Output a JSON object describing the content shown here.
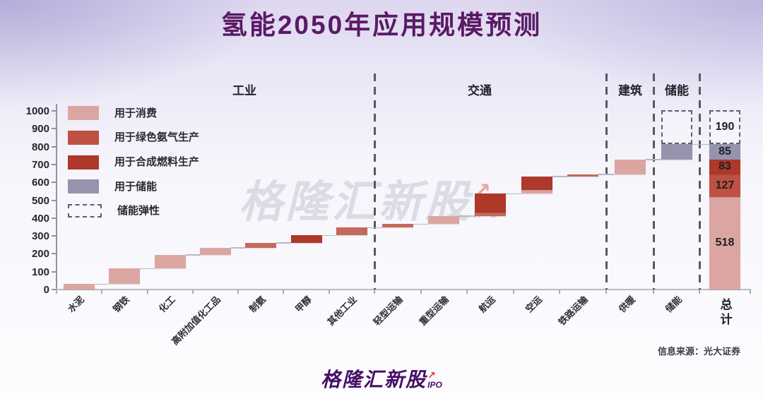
{
  "title": "氢能2050年应用规模预测",
  "source": "信息来源：光大证券",
  "watermark": {
    "brand": "格隆汇新股",
    "arrow": "↗",
    "sub": "IPO"
  },
  "footer": {
    "brand": "格隆汇新股",
    "arrow": "↗",
    "sub": "IPO"
  },
  "colors": {
    "consumption": "#dba6a1",
    "ammonia_light": "#c4695b",
    "ammonia": "#bf5044",
    "synfuel": "#ae382a",
    "storage": "#9693ac",
    "title_purple": "#5a1a66",
    "brand_purple": "#471069",
    "brand_red": "#df352d"
  },
  "chart_data": {
    "type": "waterfall",
    "ylim": [
      0,
      1000
    ],
    "yticks": [
      0,
      100,
      200,
      300,
      400,
      500,
      600,
      700,
      800,
      900,
      1000
    ],
    "grid": false,
    "sections": [
      {
        "label": "工业"
      },
      {
        "label": "交通"
      },
      {
        "label": "建筑"
      },
      {
        "label": "储能"
      }
    ],
    "legend": [
      {
        "label": "用于消费",
        "swatch": "consumption"
      },
      {
        "label": "用于绿色氨气生产",
        "swatch": "ammonia"
      },
      {
        "label": "用于合成燃料生产",
        "swatch": "synfuel"
      },
      {
        "label": "用于储能",
        "swatch": "storage"
      },
      {
        "label": "储能弹性",
        "swatch": "flex"
      }
    ],
    "bars": [
      {
        "category": "水泥",
        "section": "工业",
        "start": 0,
        "segments": [
          {
            "color": "consumption",
            "value": 30
          }
        ]
      },
      {
        "category": "钢铁",
        "section": "工业",
        "start": 30,
        "segments": [
          {
            "color": "consumption",
            "value": 88
          }
        ]
      },
      {
        "category": "化工",
        "section": "工业",
        "start": 118,
        "segments": [
          {
            "color": "consumption",
            "value": 77
          }
        ]
      },
      {
        "category": "高附加值化工品",
        "section": "工业",
        "start": 195,
        "segments": [
          {
            "color": "consumption",
            "value": 40
          }
        ]
      },
      {
        "category": "制氨",
        "section": "工业",
        "start": 235,
        "segments": [
          {
            "color": "ammonia_light",
            "value": 26
          }
        ]
      },
      {
        "category": "甲醇",
        "section": "工业",
        "start": 261,
        "segments": [
          {
            "color": "synfuel",
            "value": 42
          }
        ]
      },
      {
        "category": "其他工业",
        "section": "工业",
        "start": 303,
        "segments": [
          {
            "color": "ammonia_light",
            "value": 43
          }
        ]
      },
      {
        "category": "轻型运输",
        "section": "交通",
        "start": 346,
        "segments": [
          {
            "color": "ammonia_light",
            "value": 20
          }
        ]
      },
      {
        "category": "重型运输",
        "section": "交通",
        "start": 366,
        "segments": [
          {
            "color": "consumption",
            "value": 46
          }
        ]
      },
      {
        "category": "航运",
        "section": "交通",
        "start": 412,
        "segments": [
          {
            "color": "ammonia_light",
            "value": 20
          },
          {
            "color": "synfuel",
            "value": 105
          }
        ]
      },
      {
        "category": "空运",
        "section": "交通",
        "start": 537,
        "segments": [
          {
            "color": "consumption",
            "value": 20
          },
          {
            "color": "synfuel",
            "value": 76
          }
        ]
      },
      {
        "category": "铁路运输",
        "section": "交通",
        "start": 633,
        "segments": [
          {
            "color": "ammonia_light",
            "value": 13
          }
        ]
      },
      {
        "category": "供暖",
        "section": "建筑",
        "start": 646,
        "segments": [
          {
            "color": "consumption",
            "value": 82
          }
        ]
      },
      {
        "category": "储能",
        "section": "储能",
        "start": 728,
        "segments": [
          {
            "color": "storage",
            "value": 85
          }
        ],
        "flex": 190
      },
      {
        "category": "总计",
        "section": "总计",
        "is_total": true,
        "start": 0,
        "segments": [
          {
            "color": "consumption",
            "value": 518,
            "label": "518"
          },
          {
            "color": "ammonia",
            "value": 127,
            "label": "127"
          },
          {
            "color": "synfuel",
            "value": 83,
            "label": "83"
          },
          {
            "color": "storage",
            "value": 85,
            "label": "85"
          }
        ],
        "flex": 190,
        "flex_label": "190"
      }
    ]
  }
}
